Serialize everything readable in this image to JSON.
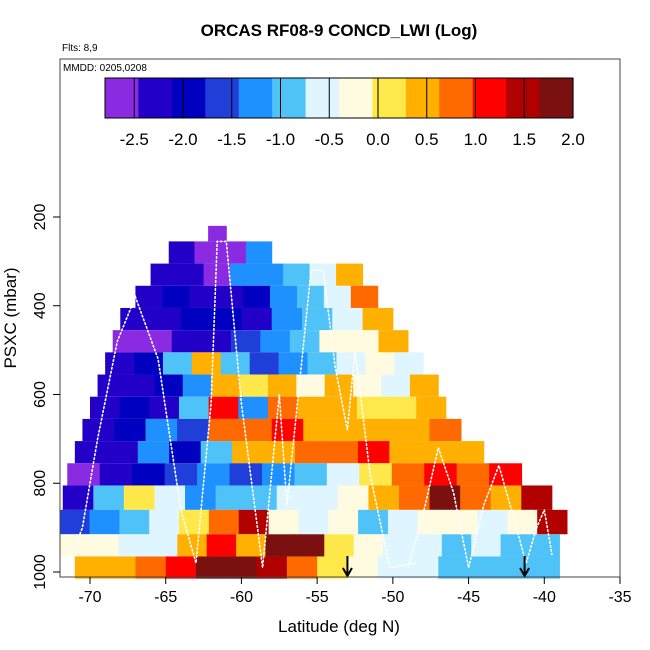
{
  "chart_data": {
    "type": "heatmap",
    "title": "ORCAS RF08-9 CONCD_LWI (Log)",
    "flights_note": "Flts: 8,9",
    "dates_note": "MMDD: 0205,0208",
    "xlabel": "Latitude (deg N)",
    "ylabel": "PSXC (mbar)",
    "xlim": [
      -72,
      -35
    ],
    "ylim": [
      1020,
      200
    ],
    "x_ticks": [
      -70,
      -65,
      -60,
      -55,
      -50,
      -45,
      -40,
      -35
    ],
    "y_ticks": [
      200,
      400,
      600,
      800,
      1000
    ],
    "colorbar": {
      "range": [
        -2.8,
        2.0
      ],
      "ticks": [
        -2.5,
        -2.0,
        -1.5,
        -1.0,
        -0.5,
        0.0,
        0.5,
        1.0,
        1.5,
        2.0
      ],
      "tick_labels": [
        "-2.5",
        "-2.0",
        "-1.5",
        "-1.0",
        "-0.5",
        "0.0",
        "0.5",
        "1.0",
        "1.5",
        "2.0"
      ],
      "colors": [
        "#8a2be2",
        "#2200c8",
        "#0000c0",
        "#1f3fd8",
        "#1e90ff",
        "#4fc3f7",
        "#dff5ff",
        "#fffbe0",
        "#ffe84a",
        "#ffb000",
        "#ff6a00",
        "#ff0000",
        "#b00000",
        "#7a1010"
      ]
    },
    "bands": [
      {
        "p_top": 220,
        "p_bottom": 255,
        "lat_min": -62.2,
        "lat_max": -61.0,
        "values": [
          -2.8,
          -2.8
        ]
      },
      {
        "p_top": 255,
        "p_bottom": 305,
        "lat_min": -64.8,
        "lat_max": -58.0,
        "values": [
          -2.2,
          -2.5,
          -2.6,
          -1.2
        ]
      },
      {
        "p_top": 305,
        "p_bottom": 355,
        "lat_min": -66.0,
        "lat_max": -52.0,
        "values": [
          -2.3,
          -2.4,
          -2.6,
          -1.4,
          -1.2,
          -1.0,
          -0.6,
          0.6
        ]
      },
      {
        "p_top": 355,
        "p_bottom": 405,
        "lat_min": -67.0,
        "lat_max": -51.0,
        "values": [
          -2.3,
          -2.0,
          -2.2,
          -2.4,
          -1.8,
          -1.4,
          -1.0,
          -0.5,
          0.7
        ]
      },
      {
        "p_top": 405,
        "p_bottom": 455,
        "lat_min": -68.0,
        "lat_max": -50.0,
        "values": [
          -2.4,
          -2.2,
          -1.8,
          -2.0,
          -2.2,
          -1.4,
          -0.9,
          -0.6,
          0.6
        ]
      },
      {
        "p_top": 455,
        "p_bottom": 505,
        "lat_min": -68.5,
        "lat_max": -49.0,
        "values": [
          -2.6,
          -2.5,
          -2.4,
          -2.2,
          -1.6,
          -1.2,
          -1.0,
          -0.4,
          -0.2,
          0.3
        ]
      },
      {
        "p_top": 505,
        "p_bottom": 555,
        "lat_min": -69.0,
        "lat_max": -48.0,
        "values": [
          -2.4,
          -2.1,
          -0.8,
          0.5,
          -1.0,
          -1.6,
          -1.4,
          -1.0,
          -0.5,
          -0.2,
          -0.6
        ]
      },
      {
        "p_top": 555,
        "p_bottom": 605,
        "lat_min": -69.5,
        "lat_max": -47.0,
        "values": [
          -2.3,
          -2.2,
          -2.0,
          -1.2,
          0.4,
          0.1,
          0.3,
          -0.2,
          0.4,
          -0.2,
          -0.5,
          0.6
        ]
      },
      {
        "p_top": 605,
        "p_bottom": 655,
        "lat_min": -70.0,
        "lat_max": -46.5,
        "values": [
          -2.3,
          -2.1,
          -2.2,
          -1.0,
          1.2,
          -1.4,
          0.7,
          0.6,
          0.4,
          0.2,
          0.1,
          0.5
        ]
      },
      {
        "p_top": 655,
        "p_bottom": 705,
        "lat_min": -70.5,
        "lat_max": -45.5,
        "values": [
          -2.3,
          -2.0,
          -1.2,
          -1.5,
          0.7,
          0.9,
          1.0,
          0.4,
          0.6,
          0.3,
          0.5,
          0.8
        ]
      },
      {
        "p_top": 705,
        "p_bottom": 755,
        "lat_min": -71.0,
        "lat_max": -44.0,
        "values": [
          -2.4,
          -2.2,
          -1.4,
          -1.8,
          -0.8,
          0.3,
          0.5,
          0.7,
          0.8,
          1.0,
          0.6,
          0.3,
          0.5
        ]
      },
      {
        "p_top": 755,
        "p_bottom": 805,
        "lat_min": -71.5,
        "lat_max": -41.5,
        "values": [
          -2.5,
          -2.3,
          -2.1,
          -1.6,
          -1.2,
          -1.6,
          -1.2,
          -0.8,
          -0.6,
          0.2,
          0.9,
          1.2,
          0.8,
          1.3
        ]
      },
      {
        "p_top": 805,
        "p_bottom": 860,
        "lat_min": -71.8,
        "lat_max": -39.5,
        "values": [
          -2.3,
          -1.0,
          0.2,
          -0.6,
          -1.3,
          -1.0,
          -0.9,
          -0.7,
          -0.5,
          -0.3,
          0.3,
          0.8,
          1.7,
          0.9,
          0.5,
          1.6
        ]
      },
      {
        "p_top": 860,
        "p_bottom": 915,
        "lat_min": -72.0,
        "lat_max": -38.5,
        "values": [
          -1.6,
          -1.3,
          -0.8,
          -0.5,
          0.2,
          0.9,
          1.6,
          -0.3,
          -0.6,
          -0.4,
          -0.8,
          -0.5,
          -0.3,
          -0.4,
          -0.5,
          -0.2,
          1.5
        ]
      },
      {
        "p_top": 915,
        "p_bottom": 965,
        "lat_min": -72.0,
        "lat_max": -39.0,
        "values": [
          -0.4,
          -0.3,
          -0.6,
          -0.5,
          0.6,
          1.2,
          0.5,
          1.7,
          2.0,
          0.2,
          -0.3,
          -0.5,
          -0.6,
          -0.8,
          -0.7,
          -0.9,
          -1.0
        ]
      },
      {
        "p_top": 965,
        "p_bottom": 1015,
        "lat_min": -71.0,
        "lat_max": -39.0,
        "values": [
          0.3,
          0.5,
          0.8,
          1.3,
          1.8,
          2.0,
          1.4,
          0.8,
          0.2,
          -0.3,
          -0.6,
          -0.6,
          -0.8,
          -0.9,
          -1.0,
          -1.0
        ]
      }
    ],
    "flight_tracks": [
      {
        "name": "RF08",
        "lat": [
          -71.5,
          -70.5,
          -69.5,
          -68.2,
          -67.0,
          -65.5,
          -64.0,
          -63.0,
          -62.0,
          -61.6,
          -61.0,
          -60.0,
          -58.6,
          -57.5,
          -57.0,
          -56.0,
          -55.4,
          -54.6,
          -53.8,
          -53.0,
          -52.5,
          -51.5,
          -50.2,
          -48.5
        ],
        "p": [
          990,
          900,
          700,
          480,
          380,
          520,
          860,
          980,
          620,
          255,
          255,
          620,
          990,
          600,
          850,
          520,
          320,
          320,
          540,
          680,
          500,
          780,
          990,
          980
        ]
      },
      {
        "name": "RF09",
        "lat": [
          -49.0,
          -48.0,
          -47.0,
          -46.0,
          -45.0,
          -44.0,
          -43.0,
          -42.0,
          -41.2,
          -40.5,
          -40.0,
          -39.5
        ],
        "p": [
          990,
          870,
          720,
          820,
          990,
          850,
          760,
          880,
          980,
          900,
          860,
          960
        ]
      }
    ],
    "markers": [
      {
        "lat": -53.0,
        "symbol": "down-arrow"
      },
      {
        "lat": -41.3,
        "symbol": "down-arrow"
      }
    ]
  }
}
